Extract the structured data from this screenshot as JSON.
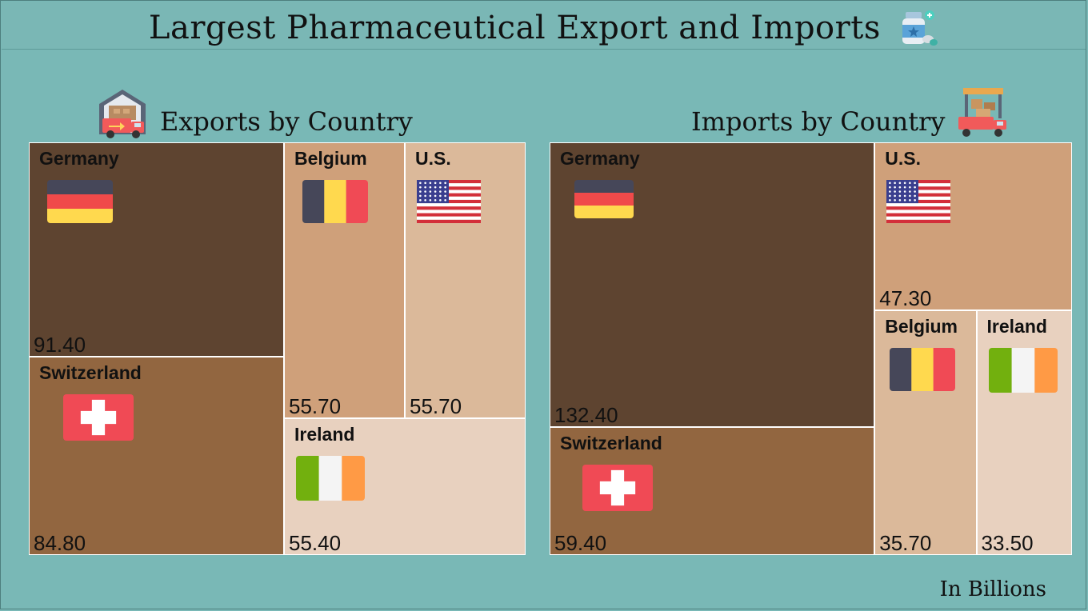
{
  "header": {
    "title": "Largest Pharmaceutical Export and Imports",
    "title_icon": "medicine-bottle-icon"
  },
  "exports_panel": {
    "title": "Exports by Country",
    "icon": "warehouse-truck-icon"
  },
  "imports_panel": {
    "title": "Imports by Country",
    "icon": "delivery-truck-icon"
  },
  "unit_note": "In Billions",
  "colors": {
    "background": "#79b8b6",
    "rank1": "#5e4430",
    "rank2": "#926640",
    "rank3": "#cfa07a",
    "rank4": "#dbb99a",
    "rank5": "#e8d1bf"
  },
  "chart_data": [
    {
      "type": "treemap",
      "title": "Exports by Country",
      "categories": [
        "Germany",
        "Switzerland",
        "Belgium",
        "U.S.",
        "Ireland"
      ],
      "values": [
        91.4,
        84.8,
        55.7,
        55.7,
        55.4
      ],
      "labels": [
        "91.40",
        "84.80",
        "55.70",
        "55.70",
        "55.40"
      ],
      "flags": [
        "germany-flag-icon",
        "switzerland-flag-icon",
        "belgium-flag-icon",
        "us-flag-icon",
        "ireland-flag-icon"
      ]
    },
    {
      "type": "treemap",
      "title": "Imports by Country",
      "categories": [
        "Germany",
        "Switzerland",
        "U.S.",
        "Belgium",
        "Ireland"
      ],
      "values": [
        132.4,
        59.4,
        47.3,
        35.7,
        33.5
      ],
      "labels": [
        "132.40",
        "59.40",
        "47.30",
        "35.70",
        "33.50"
      ],
      "flags": [
        "germany-flag-icon",
        "switzerland-flag-icon",
        "us-flag-icon",
        "belgium-flag-icon",
        "ireland-flag-icon"
      ]
    }
  ]
}
